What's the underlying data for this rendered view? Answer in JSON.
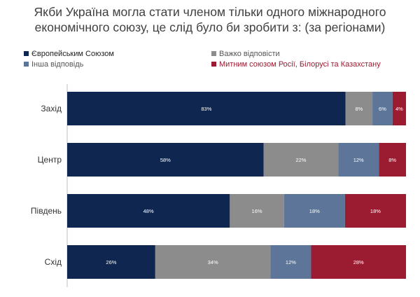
{
  "title_line1": "Якби Україна могла стати членом тільки одного міжнародного",
  "title_line2": "економічного союзу, це слід було би зробити з: (за регіонами)",
  "chart_data": {
    "type": "bar",
    "orientation": "horizontal",
    "stacked": true,
    "categories": [
      "Захід",
      "Центр",
      "Південь",
      "Схід"
    ],
    "series": [
      {
        "name": "Європейським Союзом",
        "color": "#0e2650",
        "values": [
          83,
          58,
          48,
          26
        ]
      },
      {
        "name": "Важко відповісти",
        "color": "#8c8c8c",
        "values": [
          8,
          22,
          16,
          34
        ]
      },
      {
        "name": "Інша відповідь",
        "color": "#5c7599",
        "values": [
          6,
          12,
          18,
          12
        ]
      },
      {
        "name": "Митним союзом Росії, Білорусі та Казахстану",
        "color": "#9b1b30",
        "values": [
          4,
          8,
          18,
          28
        ]
      }
    ],
    "value_suffix": "%",
    "legend_position": "top",
    "grid": false
  }
}
